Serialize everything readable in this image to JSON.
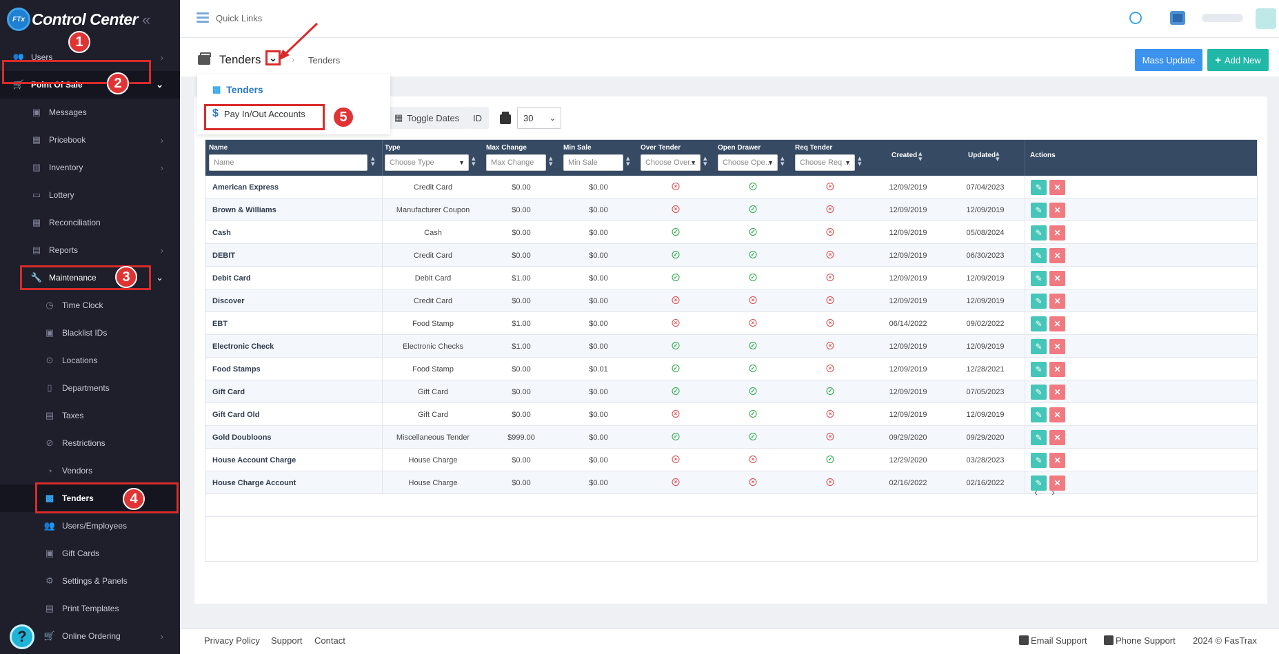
{
  "app": {
    "title": "Control Center",
    "logo_text": "FTx"
  },
  "topbar": {
    "quick_links": "Quick Links"
  },
  "sidebar": {
    "items": [
      {
        "label": "Users",
        "icon": "users-icon"
      },
      {
        "label": "Point Of Sale",
        "icon": "cart-icon"
      },
      {
        "label": "Messages",
        "icon": "message-icon"
      },
      {
        "label": "Pricebook",
        "icon": "calculator-icon"
      },
      {
        "label": "Inventory",
        "icon": "inventory-icon"
      },
      {
        "label": "Lottery",
        "icon": "ticket-icon"
      },
      {
        "label": "Reconciliation",
        "icon": "grid-icon"
      },
      {
        "label": "Reports",
        "icon": "chart-icon"
      },
      {
        "label": "Maintenance",
        "icon": "wrench-icon"
      },
      {
        "label": "Time Clock",
        "icon": "clock-icon"
      },
      {
        "label": "Blacklist IDs",
        "icon": "id-icon"
      },
      {
        "label": "Locations",
        "icon": "pin-icon"
      },
      {
        "label": "Departments",
        "icon": "building-icon"
      },
      {
        "label": "Taxes",
        "icon": "receipt-icon"
      },
      {
        "label": "Restrictions",
        "icon": "ban-icon"
      },
      {
        "label": "Vendors",
        "icon": "truck-icon"
      },
      {
        "label": "Tenders",
        "icon": "tender-icon"
      },
      {
        "label": "Users/Employees",
        "icon": "users-icon"
      },
      {
        "label": "Gift Cards",
        "icon": "gift-icon"
      },
      {
        "label": "Settings & Panels",
        "icon": "gear-icon"
      },
      {
        "label": "Print Templates",
        "icon": "print-icon"
      },
      {
        "label": "Online Ordering",
        "icon": "cart-icon"
      }
    ],
    "help": "?"
  },
  "header": {
    "title": "Tenders",
    "breadcrumb": "Tenders",
    "mass_update": "Mass Update",
    "add_new": "Add New"
  },
  "dropdown": {
    "item1": "Tenders",
    "item2": "Pay In/Out Accounts"
  },
  "toolbar": {
    "toggle_dates": "Toggle Dates",
    "id": "ID",
    "page_size": "30"
  },
  "table": {
    "headers": {
      "name": "Name",
      "type": "Type",
      "max_change": "Max Change",
      "min_sale": "Min Sale",
      "over_tender": "Over Tender",
      "open_drawer": "Open Drawer",
      "req_tender": "Req Tender",
      "created": "Created",
      "updated": "Updated",
      "actions": "Actions"
    },
    "filters": {
      "name": "Name",
      "type": "Choose Type",
      "max_change": "Max Change",
      "min_sale": "Min Sale",
      "over_tender": "Choose Over...",
      "open_drawer": "Choose Ope...",
      "req_tender": "Choose Req ..."
    },
    "rows": [
      {
        "name": "American Express",
        "type": "Credit Card",
        "max_change": "$0.00",
        "min_sale": "$0.00",
        "over": false,
        "drawer": true,
        "req": false,
        "created": "12/09/2019",
        "updated": "07/04/2023"
      },
      {
        "name": "Brown & Williams",
        "type": "Manufacturer Coupon",
        "max_change": "$0.00",
        "min_sale": "$0.00",
        "over": false,
        "drawer": true,
        "req": false,
        "created": "12/09/2019",
        "updated": "12/09/2019"
      },
      {
        "name": "Cash",
        "type": "Cash",
        "max_change": "$0.00",
        "min_sale": "$0.00",
        "over": true,
        "drawer": true,
        "req": false,
        "created": "12/09/2019",
        "updated": "05/08/2024"
      },
      {
        "name": "DEBIT",
        "type": "Credit Card",
        "max_change": "$0.00",
        "min_sale": "$0.00",
        "over": true,
        "drawer": true,
        "req": false,
        "created": "12/09/2019",
        "updated": "06/30/2023"
      },
      {
        "name": "Debit Card",
        "type": "Debit Card",
        "max_change": "$1.00",
        "min_sale": "$0.00",
        "over": true,
        "drawer": true,
        "req": false,
        "created": "12/09/2019",
        "updated": "12/09/2019"
      },
      {
        "name": "Discover",
        "type": "Credit Card",
        "max_change": "$0.00",
        "min_sale": "$0.00",
        "over": false,
        "drawer": false,
        "req": false,
        "created": "12/09/2019",
        "updated": "12/09/2019"
      },
      {
        "name": "EBT",
        "type": "Food Stamp",
        "max_change": "$1.00",
        "min_sale": "$0.00",
        "over": false,
        "drawer": false,
        "req": false,
        "created": "06/14/2022",
        "updated": "09/02/2022"
      },
      {
        "name": "Electronic Check",
        "type": "Electronic Checks",
        "max_change": "$1.00",
        "min_sale": "$0.00",
        "over": true,
        "drawer": true,
        "req": false,
        "created": "12/09/2019",
        "updated": "12/09/2019"
      },
      {
        "name": "Food Stamps",
        "type": "Food Stamp",
        "max_change": "$0.00",
        "min_sale": "$0.01",
        "over": true,
        "drawer": true,
        "req": false,
        "created": "12/09/2019",
        "updated": "12/28/2021"
      },
      {
        "name": "Gift Card",
        "type": "Gift Card",
        "max_change": "$0.00",
        "min_sale": "$0.00",
        "over": true,
        "drawer": true,
        "req": true,
        "created": "12/09/2019",
        "updated": "07/05/2023"
      },
      {
        "name": "Gift Card Old",
        "type": "Gift Card",
        "max_change": "$0.00",
        "min_sale": "$0.00",
        "over": false,
        "drawer": true,
        "req": false,
        "created": "12/09/2019",
        "updated": "12/09/2019"
      },
      {
        "name": "Gold Doubloons",
        "type": "Miscellaneous Tender",
        "max_change": "$999.00",
        "min_sale": "$0.00",
        "over": true,
        "drawer": true,
        "req": false,
        "created": "09/29/2020",
        "updated": "09/29/2020"
      },
      {
        "name": "House Account Charge",
        "type": "House Charge",
        "max_change": "$0.00",
        "min_sale": "$0.00",
        "over": false,
        "drawer": false,
        "req": true,
        "created": "12/29/2020",
        "updated": "03/28/2023"
      },
      {
        "name": "House Charge Account",
        "type": "House Charge",
        "max_change": "$0.00",
        "min_sale": "$0.00",
        "over": false,
        "drawer": false,
        "req": false,
        "created": "02/16/2022",
        "updated": "02/16/2022"
      }
    ]
  },
  "pager": {
    "prev": "‹",
    "next": "›"
  },
  "footer": {
    "privacy": "Privacy Policy",
    "support": "Support",
    "contact": "Contact",
    "email_support": "Email Support",
    "phone_support": "Phone Support",
    "copyright": "2024 © FasTrax"
  },
  "callouts": [
    "1",
    "2",
    "3",
    "4",
    "5"
  ],
  "colors": {
    "sidebar": "#1e1f2b",
    "accent": "#35a6f0",
    "highlight": "#d92b2b",
    "table_header": "#364a63"
  }
}
